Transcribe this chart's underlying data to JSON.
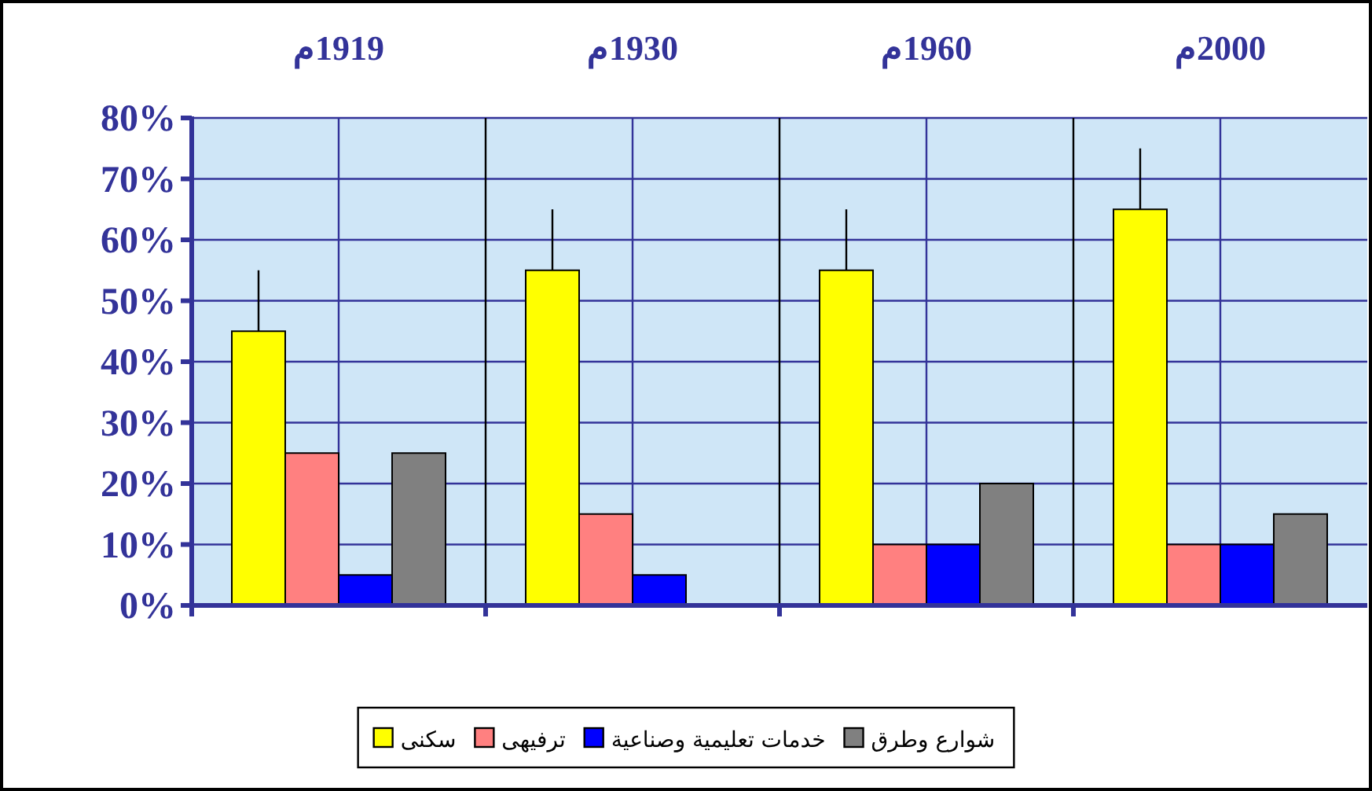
{
  "chart_data": {
    "type": "bar",
    "categories": [
      "1919م",
      "1930م",
      "1960م",
      "2000م"
    ],
    "series": [
      {
        "name": "سكنى",
        "color": "#ffff00",
        "values": [
          45,
          55,
          55,
          65
        ],
        "errors": [
          10,
          10,
          10,
          10
        ]
      },
      {
        "name": "ترفيهى",
        "color": "#ff8080",
        "values": [
          25,
          15,
          10,
          10
        ]
      },
      {
        "name": "خدمات تعليمية وصناعية",
        "color": "#0000ff",
        "values": [
          5,
          5,
          10,
          10
        ]
      },
      {
        "name": "شوارع وطرق",
        "color": "#808080",
        "values": [
          25,
          null,
          20,
          15
        ]
      }
    ],
    "ylim": [
      0,
      80
    ],
    "yticks": [
      {
        "value": 0,
        "label": "0%"
      },
      {
        "value": 10,
        "label": "10%"
      },
      {
        "value": 20,
        "label": "20%"
      },
      {
        "value": 30,
        "label": "30%"
      },
      {
        "value": 40,
        "label": "40%"
      },
      {
        "value": 50,
        "label": "50%"
      },
      {
        "value": 60,
        "label": "60%"
      },
      {
        "value": 70,
        "label": "70%"
      },
      {
        "value": 80,
        "label": "80%"
      }
    ],
    "grid": true,
    "legend": "bottom"
  }
}
